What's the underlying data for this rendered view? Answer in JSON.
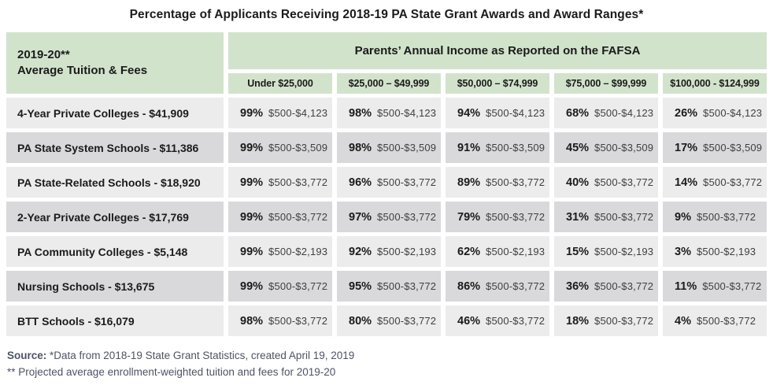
{
  "title": "Percentage of Applicants Receiving 2018-19 PA State Grant Awards and Award Ranges*",
  "chart_data": {
    "type": "table",
    "title": "Percentage of Applicants Receiving 2018-19 PA State Grant Awards and Award Ranges*",
    "corner_header": [
      "2019-20**",
      "Average Tuition & Fees"
    ],
    "column_group_header": "Parents’ Annual Income as Reported on the FAFSA",
    "columns": [
      "Under $25,000",
      "$25,000 – $49,999",
      "$50,000 – $74,999",
      "$75,000 – $99,999",
      "$100,000 - $124,999"
    ],
    "rows": [
      {
        "label": "4-Year Private Colleges - $41,909",
        "cells": [
          {
            "pct": "99%",
            "range": "$500-$4,123"
          },
          {
            "pct": "98%",
            "range": "$500-$4,123"
          },
          {
            "pct": "94%",
            "range": "$500-$4,123"
          },
          {
            "pct": "68%",
            "range": "$500-$4,123"
          },
          {
            "pct": "26%",
            "range": "$500-$4,123"
          }
        ]
      },
      {
        "label": "PA State System Schools - $11,386",
        "cells": [
          {
            "pct": "99%",
            "range": "$500-$3,509"
          },
          {
            "pct": "98%",
            "range": "$500-$3,509"
          },
          {
            "pct": "91%",
            "range": "$500-$3,509"
          },
          {
            "pct": "45%",
            "range": "$500-$3,509"
          },
          {
            "pct": "17%",
            "range": "$500-$3,509"
          }
        ]
      },
      {
        "label": "PA State-Related Schools - $18,920",
        "cells": [
          {
            "pct": "99%",
            "range": "$500-$3,772"
          },
          {
            "pct": "96%",
            "range": "$500-$3,772"
          },
          {
            "pct": "89%",
            "range": "$500-$3,772"
          },
          {
            "pct": "40%",
            "range": "$500-$3,772"
          },
          {
            "pct": "14%",
            "range": "$500-$3,772"
          }
        ]
      },
      {
        "label": "2-Year Private Colleges - $17,769",
        "cells": [
          {
            "pct": "99%",
            "range": "$500-$3,772"
          },
          {
            "pct": "97%",
            "range": "$500-$3,772"
          },
          {
            "pct": "79%",
            "range": "$500-$3,772"
          },
          {
            "pct": "31%",
            "range": "$500-$3,772"
          },
          {
            "pct": "9%",
            "range": "$500-$3,772"
          }
        ]
      },
      {
        "label": "PA Community Colleges - $5,148",
        "cells": [
          {
            "pct": "99%",
            "range": "$500-$2,193"
          },
          {
            "pct": "92%",
            "range": "$500-$2,193"
          },
          {
            "pct": "62%",
            "range": "$500-$2,193"
          },
          {
            "pct": "15%",
            "range": "$500-$2,193"
          },
          {
            "pct": "3%",
            "range": "$500-$2,193"
          }
        ]
      },
      {
        "label": "Nursing Schools - $13,675",
        "cells": [
          {
            "pct": "99%",
            "range": "$500-$3,772"
          },
          {
            "pct": "95%",
            "range": "$500-$3,772"
          },
          {
            "pct": "86%",
            "range": "$500-$3,772"
          },
          {
            "pct": "36%",
            "range": "$500-$3,772"
          },
          {
            "pct": "11%",
            "range": "$500-$3,772"
          }
        ]
      },
      {
        "label": "BTT Schools - $16,079",
        "cells": [
          {
            "pct": "98%",
            "range": "$500-$3,772"
          },
          {
            "pct": "80%",
            "range": "$500-$3,772"
          },
          {
            "pct": "46%",
            "range": "$500-$3,772"
          },
          {
            "pct": "18%",
            "range": "$500-$3,772"
          },
          {
            "pct": "4%",
            "range": "$500-$3,772"
          }
        ]
      }
    ]
  },
  "footer": {
    "source_label": "Source:",
    "source_text": "*Data from 2018-19 State Grant Statistics, created April 19, 2019",
    "note": "** Projected average enrollment-weighted tuition and fees for 2019-20"
  },
  "colors": {
    "header_green": "#d2e3cc",
    "row_light": "#ececec",
    "row_dark": "#d9d9db",
    "footer_text": "#4d5366"
  }
}
